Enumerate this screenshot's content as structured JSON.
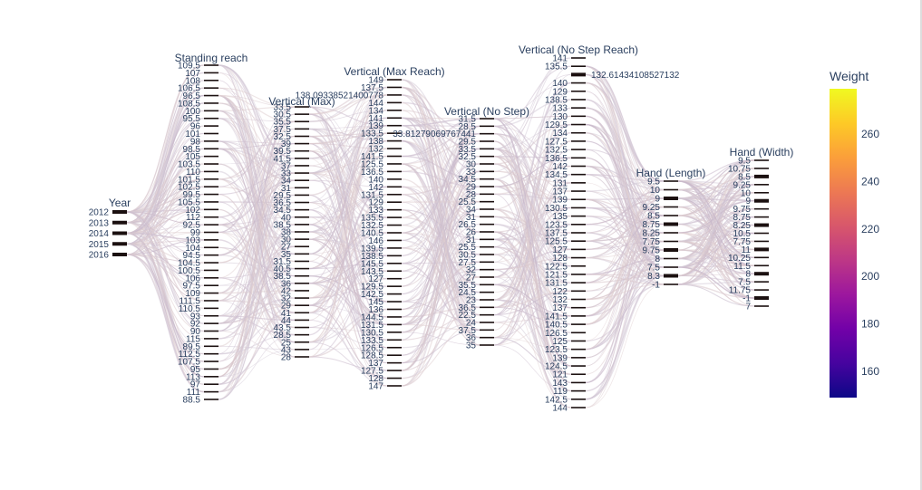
{
  "chart_data": {
    "type": "parallel-categories",
    "colorbar": {
      "title": "Weight",
      "range": [
        149,
        279
      ],
      "ticks": [
        160,
        180,
        200,
        220,
        240,
        260
      ],
      "colors": [
        "#0d0887",
        "#46039f",
        "#7201a8",
        "#9c179e",
        "#bd3786",
        "#d8576b",
        "#ed7953",
        "#fb9f3a",
        "#fdca26",
        "#f0f921"
      ]
    },
    "dimensions": [
      {
        "label": "Year",
        "categories": [
          "2012",
          "2013",
          "2014",
          "2015",
          "2016"
        ]
      },
      {
        "label": "Standing reach",
        "categories": [
          "109.5",
          "107",
          "108",
          "106.5",
          "96.5",
          "108.5",
          "100",
          "95.5",
          "96",
          "101",
          "98",
          "98.5",
          "105",
          "103.5",
          "110",
          "101.5",
          "102.5",
          "99.5",
          "105.5",
          "102",
          "112",
          "92.5",
          "99",
          "103",
          "104",
          "94.5",
          "104.5",
          "100.5",
          "106",
          "97.5",
          "109",
          "111.5",
          "110.5",
          "93",
          "92",
          "90",
          "115",
          "89.5",
          "112.5",
          "107.5",
          "95",
          "113",
          "97",
          "111",
          "88.5"
        ]
      },
      {
        "label": "Vertical (Max)",
        "categories": [
          "33.5",
          "30.5",
          "35.5",
          "37.5",
          "32.5",
          "39",
          "39.5",
          "41.5",
          "37",
          "33",
          "34",
          "31",
          "29.5",
          "36.5",
          "34.5",
          "40",
          "38.5",
          "38",
          "30",
          "27",
          "35",
          "31.5",
          "40.5",
          "38.5",
          "36",
          "42",
          "32",
          "29",
          "41",
          "44",
          "43.5",
          "28.5",
          "25",
          "43",
          "28"
        ],
        "annotation": "138.09338521400778"
      },
      {
        "label": "Vertical (Max Reach)",
        "categories": [
          "149",
          "137.5",
          "138.09338521400778",
          "144",
          "134",
          "141",
          "139",
          "133.5",
          "138",
          "132",
          "141.5",
          "125.5",
          "136.5",
          "140",
          "142",
          "131.5",
          "129",
          "133",
          "135.5",
          "132.5",
          "140.5",
          "146",
          "139.5",
          "138.5",
          "145.5",
          "143.5",
          "127",
          "129.5",
          "142.5",
          "145",
          "136",
          "144.5",
          "131.5",
          "130.5",
          "133.5",
          "126.5",
          "128.5",
          "137",
          "127.5",
          "128",
          "147"
        ],
        "annotation": "133.81279069767441"
      },
      {
        "label": "Vertical (No Step)",
        "categories": [
          "31.5",
          "28.5",
          "33.81279069767441",
          "29.5",
          "33.5",
          "32.5",
          "30",
          "33",
          "34.5",
          "29",
          "28",
          "25.5",
          "34",
          "31",
          "26.5",
          "26",
          "31",
          "25.5",
          "30.5",
          "27.5",
          "32",
          "27",
          "35.5",
          "24.5",
          "23",
          "36.5",
          "22.5",
          "24",
          "37.5",
          "36",
          "35"
        ]
      },
      {
        "label": "Vertical (No Step Reach)",
        "categories": [
          "141",
          "135.5",
          "132.61434108527132",
          "140",
          "129",
          "138.5",
          "133",
          "130",
          "129.5",
          "134",
          "127.5",
          "132.5",
          "136.5",
          "142",
          "134.5",
          "131",
          "137",
          "139",
          "130.5",
          "135",
          "123.5",
          "137.5",
          "125.5",
          "127",
          "128",
          "122.5",
          "121.5",
          "131.5",
          "122",
          "132",
          "137",
          "141.5",
          "140.5",
          "126.5",
          "125",
          "123.5",
          "139",
          "124.5",
          "121",
          "143",
          "119",
          "142.5",
          "144"
        ],
        "annotation": "132.61434108527132"
      },
      {
        "label": "Hand (Length)",
        "categories": [
          "9.5",
          "10",
          "9",
          "9.25",
          "8.5",
          "8.75",
          "8.25",
          "7.75",
          "9.75",
          "8",
          "7.5",
          "8.3",
          "-1"
        ]
      },
      {
        "label": "Hand (Width)",
        "categories": [
          "9.5",
          "10.75",
          "8.5",
          "9.25",
          "10",
          "9",
          "9.75",
          "8.75",
          "8.25",
          "10.5",
          "7.75",
          "11",
          "10.25",
          "11.5",
          "8",
          "7.5",
          "11.75",
          "-1",
          "7"
        ]
      }
    ]
  }
}
